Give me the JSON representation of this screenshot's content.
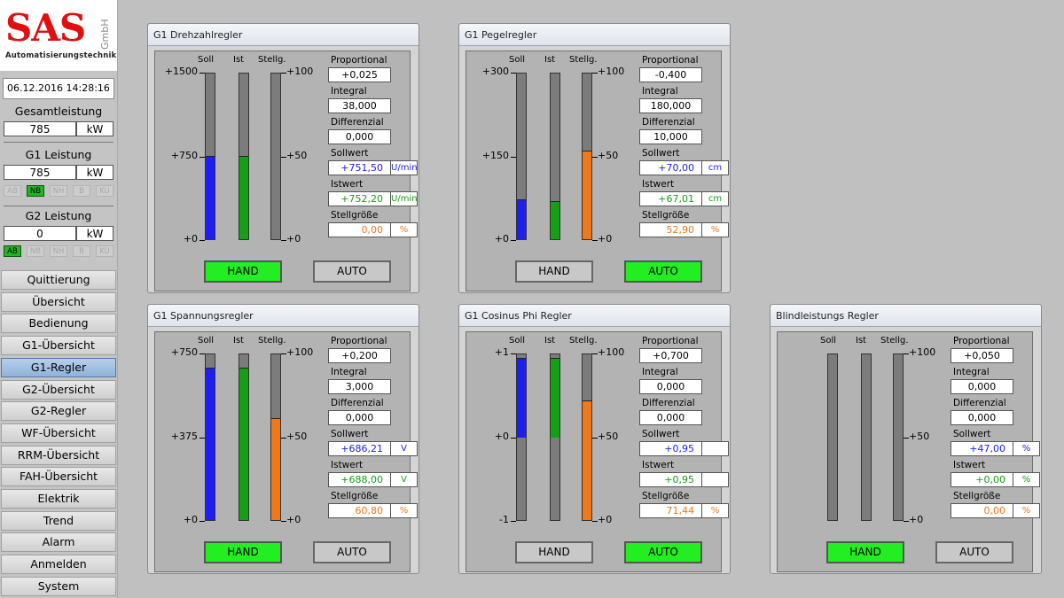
{
  "logo": {
    "text": "SAS",
    "gmbh": "GmbH",
    "subtitle": "Automatisierungstechnik"
  },
  "datetime": "06.12.2016 14:28:16",
  "gesamt": {
    "title": "Gesamtleistung",
    "value": "785",
    "unit": "kW"
  },
  "g1": {
    "title": "G1 Leistung",
    "value": "785",
    "unit": "kW",
    "status": [
      {
        "label": "AB",
        "on": false
      },
      {
        "label": "NB",
        "on": true
      },
      {
        "label": "NH",
        "on": false
      },
      {
        "label": "B",
        "on": false
      },
      {
        "label": "KU",
        "on": false
      }
    ]
  },
  "g2": {
    "title": "G2 Leistung",
    "value": "0",
    "unit": "kW",
    "status": [
      {
        "label": "AB",
        "on": true
      },
      {
        "label": "NB",
        "on": false
      },
      {
        "label": "NH",
        "on": false
      },
      {
        "label": "B",
        "on": false
      },
      {
        "label": "KU",
        "on": false
      }
    ]
  },
  "nav": [
    "Quittierung",
    "Übersicht",
    "Bedienung",
    "G1-Übersicht",
    "G1-Regler",
    "G2-Übersicht",
    "G2-Regler",
    "WF-Übersicht",
    "RRM-Übersicht",
    "FAH-Übersicht",
    "Elektrik",
    "Trend",
    "Alarm",
    "Anmelden",
    "System"
  ],
  "nav_active": 4,
  "colors": {
    "soll": "#1e1ef0",
    "ist": "#14a014",
    "stell": "#f07818",
    "on_button": "#22ee22"
  },
  "panels": [
    {
      "title": "G1 Drehzahlregler",
      "cols": [
        "Soll",
        "Ist",
        "Stellg."
      ],
      "left_ticks": [
        "+1500",
        "+750",
        "+0"
      ],
      "right_ticks": [
        "+100",
        "+50",
        "+0"
      ],
      "soll_fill": [
        0,
        0.5
      ],
      "ist_fill": [
        0,
        0.5
      ],
      "stell_fill": [
        0,
        0
      ],
      "params": {
        "p_label": "Proportional",
        "p": "+0,025",
        "i_label": "Integral",
        "i": "38,000",
        "d_label": "Differenzial",
        "d": "0,000",
        "soll_label": "Sollwert",
        "soll": "+751,50",
        "soll_unit": "U/min",
        "ist_label": "Istwert",
        "ist": "+752,20",
        "ist_unit": "U/min",
        "stell_label": "Stellgröße",
        "stell": "0,00",
        "stell_unit": "%"
      },
      "hand": "HAND",
      "auto": "AUTO",
      "mode": "HAND"
    },
    {
      "title": "G1 Pegelregler",
      "cols": [
        "Soll",
        "Ist",
        "Stellg."
      ],
      "left_ticks": [
        "+300",
        "+150",
        "+0"
      ],
      "right_ticks": [
        "+100",
        "+50",
        "+0"
      ],
      "soll_fill": [
        0,
        0.233
      ],
      "ist_fill": [
        0,
        0.223
      ],
      "stell_fill": [
        0,
        0.529
      ],
      "params": {
        "p_label": "Proportional",
        "p": "-0,400",
        "i_label": "Integral",
        "i": "180,000",
        "d_label": "Differenzial",
        "d": "10,000",
        "soll_label": "Sollwert",
        "soll": "+70,00",
        "soll_unit": "cm",
        "ist_label": "Istwert",
        "ist": "+67,01",
        "ist_unit": "cm",
        "stell_label": "Stellgröße",
        "stell": "52,90",
        "stell_unit": "%"
      },
      "hand": "HAND",
      "auto": "AUTO",
      "mode": "AUTO"
    },
    {
      "title": "G1 Spannungsregler",
      "cols": [
        "Soll",
        "Ist",
        "Stellg."
      ],
      "left_ticks": [
        "+750",
        "+375",
        "+0"
      ],
      "right_ticks": [
        "+100",
        "+50",
        "+0"
      ],
      "soll_fill": [
        0,
        0.915
      ],
      "ist_fill": [
        0,
        0.917
      ],
      "stell_fill": [
        0,
        0.608
      ],
      "params": {
        "p_label": "Proportional",
        "p": "+0,200",
        "i_label": "Integral",
        "i": "3,000",
        "d_label": "Differenzial",
        "d": "0,000",
        "soll_label": "Sollwert",
        "soll": "+686,21",
        "soll_unit": "V",
        "ist_label": "Istwert",
        "ist": "+688,00",
        "ist_unit": "V",
        "stell_label": "Stellgröße",
        "stell": "60,80",
        "stell_unit": "%"
      },
      "hand": "HAND",
      "auto": "AUTO",
      "mode": "HAND"
    },
    {
      "title": "G1 Cosinus Phi Regler",
      "cols": [
        "Soll",
        "Ist",
        "Stellg."
      ],
      "left_ticks": [
        "+1",
        "+0",
        "-1"
      ],
      "right_ticks": [
        "+100",
        "+50",
        "+0"
      ],
      "soll_fill": [
        0.5,
        0.975
      ],
      "ist_fill": [
        0.5,
        0.975
      ],
      "stell_fill": [
        0,
        0.714
      ],
      "params": {
        "p_label": "Proportional",
        "p": "+0,700",
        "i_label": "Integral",
        "i": "0,000",
        "d_label": "Differenzial",
        "d": "0,000",
        "soll_label": "Sollwert",
        "soll": "+0,95",
        "soll_unit": "",
        "ist_label": "Istwert",
        "ist": "+0,95",
        "ist_unit": "",
        "stell_label": "Stellgröße",
        "stell": "71,44",
        "stell_unit": "%"
      },
      "hand": "HAND",
      "auto": "AUTO",
      "mode": "AUTO"
    },
    {
      "title": "Blindleistungs Regler",
      "cols": [
        "Soll",
        "Ist",
        "Stellg."
      ],
      "left_ticks": [],
      "right_ticks": [
        "+100",
        "+50",
        "+0"
      ],
      "soll_fill": [
        0,
        0
      ],
      "ist_fill": [
        0,
        0
      ],
      "stell_fill": [
        0,
        0
      ],
      "params": {
        "p_label": "Proportional",
        "p": "+0,050",
        "i_label": "Integral",
        "i": "0,000",
        "d_label": "Differenzial",
        "d": "0,000",
        "soll_label": "Sollwert",
        "soll": "+47,00",
        "soll_unit": "%",
        "ist_label": "Istwert",
        "ist": "+0,00",
        "ist_unit": "%",
        "stell_label": "Stellgröße",
        "stell": "0,00",
        "stell_unit": "%"
      },
      "hand": "HAND",
      "auto": "AUTO",
      "mode": "HAND"
    }
  ]
}
